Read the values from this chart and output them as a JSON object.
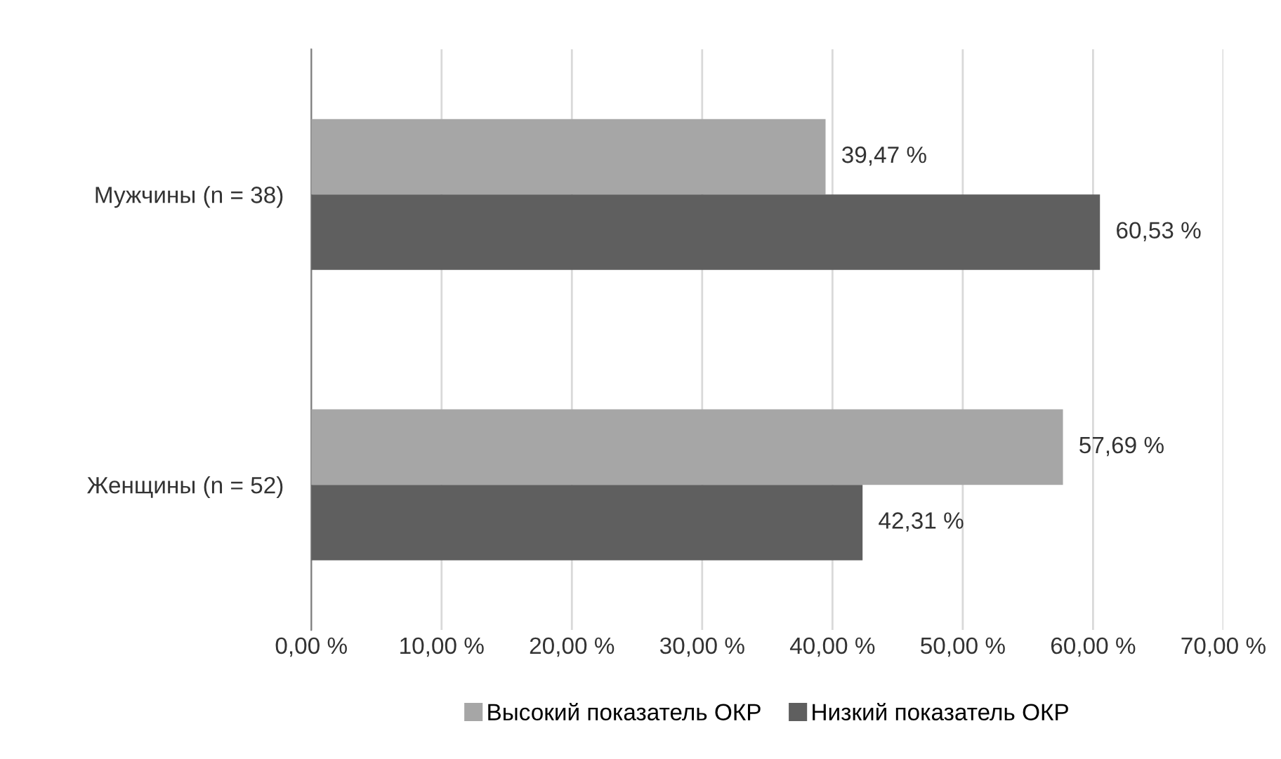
{
  "chart_data": {
    "type": "bar",
    "orientation": "horizontal",
    "categories": [
      "Мужчины (n = 38)",
      "Женщины (n = 52)"
    ],
    "series": [
      {
        "name": "Высокий показатель ОКР",
        "color": "#a6a6a6",
        "values": [
          39.47,
          57.69
        ],
        "value_labels": [
          "39,47 %",
          "57,69 %"
        ]
      },
      {
        "name": "Низкий показатель ОКР",
        "color": "#5f5f5f",
        "values": [
          60.53,
          42.31
        ],
        "value_labels": [
          "60,53 %",
          "42,31 %"
        ]
      }
    ],
    "xlim": [
      0,
      70
    ],
    "xticks": [
      {
        "value": 0,
        "label": "0,00 %"
      },
      {
        "value": 10,
        "label": "10,00 %"
      },
      {
        "value": 20,
        "label": "20,00 %"
      },
      {
        "value": 30,
        "label": "30,00 %"
      },
      {
        "value": 40,
        "label": "40,00 %"
      },
      {
        "value": 50,
        "label": "50,00 %"
      },
      {
        "value": 60,
        "label": "60,00 %"
      },
      {
        "value": 70,
        "label": "70,00 %"
      }
    ],
    "grid": "x",
    "legend": "bottom"
  }
}
